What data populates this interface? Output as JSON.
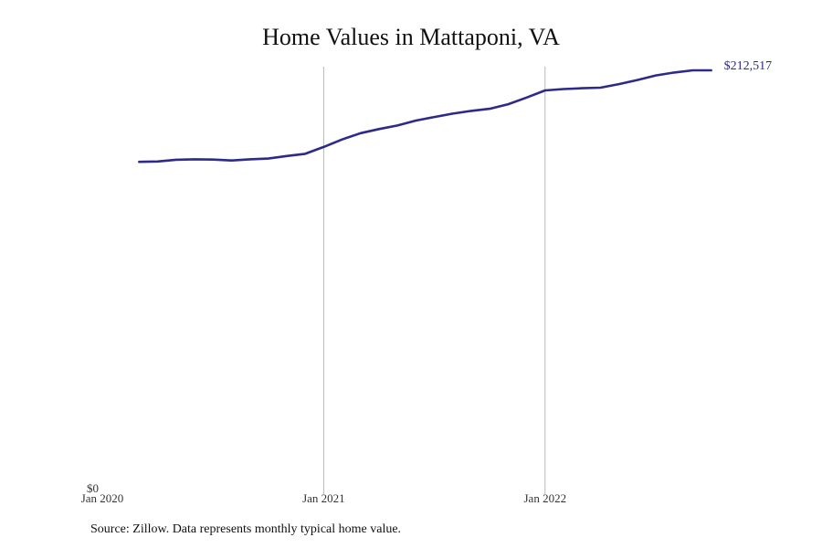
{
  "chart_data": {
    "type": "line",
    "title": "Home Values in Mattaponi, VA",
    "xlabel": "",
    "ylabel": "",
    "x_start": "2020-01",
    "x_tick_labels": [
      "Jan 2020",
      "Jan 2021",
      "Jan 2022"
    ],
    "y_tick_labels": [
      "$0"
    ],
    "ylim": [
      0,
      212517
    ],
    "grid": "vertical lines at year marks",
    "series": [
      {
        "color": "#2e2a8a",
        "x": [
          "2020-03",
          "2020-04",
          "2020-05",
          "2020-06",
          "2020-07",
          "2020-08",
          "2020-09",
          "2020-10",
          "2020-11",
          "2020-12",
          "2021-01",
          "2021-02",
          "2021-03",
          "2021-04",
          "2021-05",
          "2021-06",
          "2021-07",
          "2021-08",
          "2021-09",
          "2021-10",
          "2021-11",
          "2021-12",
          "2022-01",
          "2022-02",
          "2022-03",
          "2022-04",
          "2022-05",
          "2022-06",
          "2022-07",
          "2022-08",
          "2022-09",
          "2022-10"
        ],
        "values": [
          166000,
          166200,
          167100,
          167300,
          167200,
          166700,
          167300,
          167700,
          169000,
          170100,
          173600,
          177400,
          180600,
          182700,
          184500,
          187000,
          188800,
          190500,
          191900,
          193000,
          195300,
          198700,
          202300,
          203000,
          203400,
          203700,
          205500,
          207600,
          209900,
          211400,
          212517,
          212517
        ],
        "end_label": "$212,517"
      }
    ]
  },
  "source": "Source: Zillow. Data represents monthly typical home value."
}
